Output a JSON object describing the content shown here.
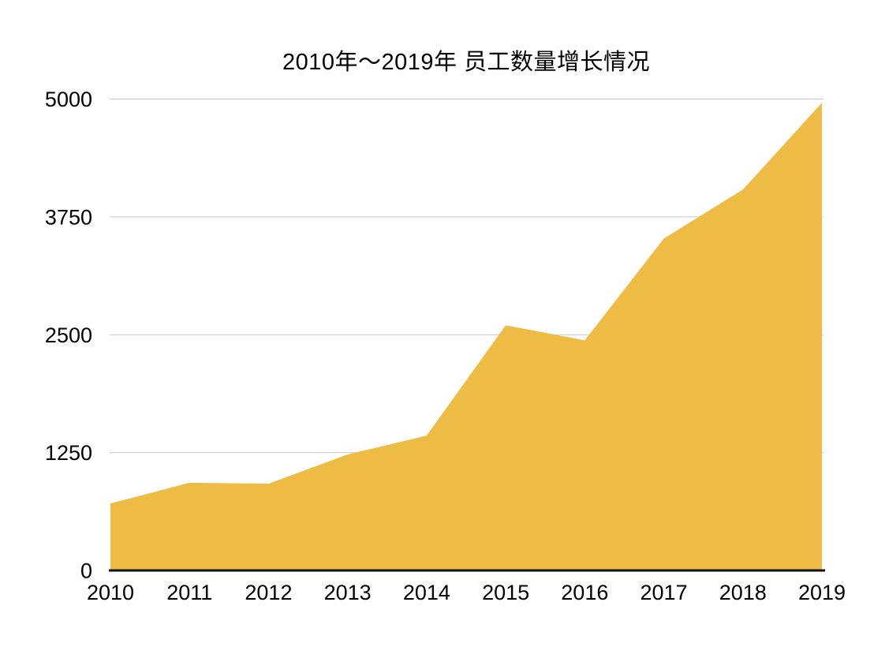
{
  "title": "2010年～2019年 员工数量增长情况",
  "colors": {
    "area_fill": "#EEBB44",
    "gridline": "#C6C6C6",
    "axis": "#111111",
    "text": "#000000",
    "background": "#FFFFFF"
  },
  "chart_data": {
    "type": "area",
    "title": "2010年～2019年 员工数量增长情况",
    "categories": [
      "2010",
      "2011",
      "2012",
      "2013",
      "2014",
      "2015",
      "2016",
      "2017",
      "2018",
      "2019"
    ],
    "series": [
      {
        "name": "员工数量",
        "values": [
          710,
          930,
          920,
          1230,
          1430,
          2600,
          2440,
          3520,
          4040,
          4960
        ]
      }
    ],
    "xlabel": "",
    "ylabel": "",
    "ylim": [
      0,
      5000
    ],
    "yticks": [
      0,
      1250,
      2500,
      3750,
      5000
    ],
    "grid": true,
    "legend": false
  }
}
